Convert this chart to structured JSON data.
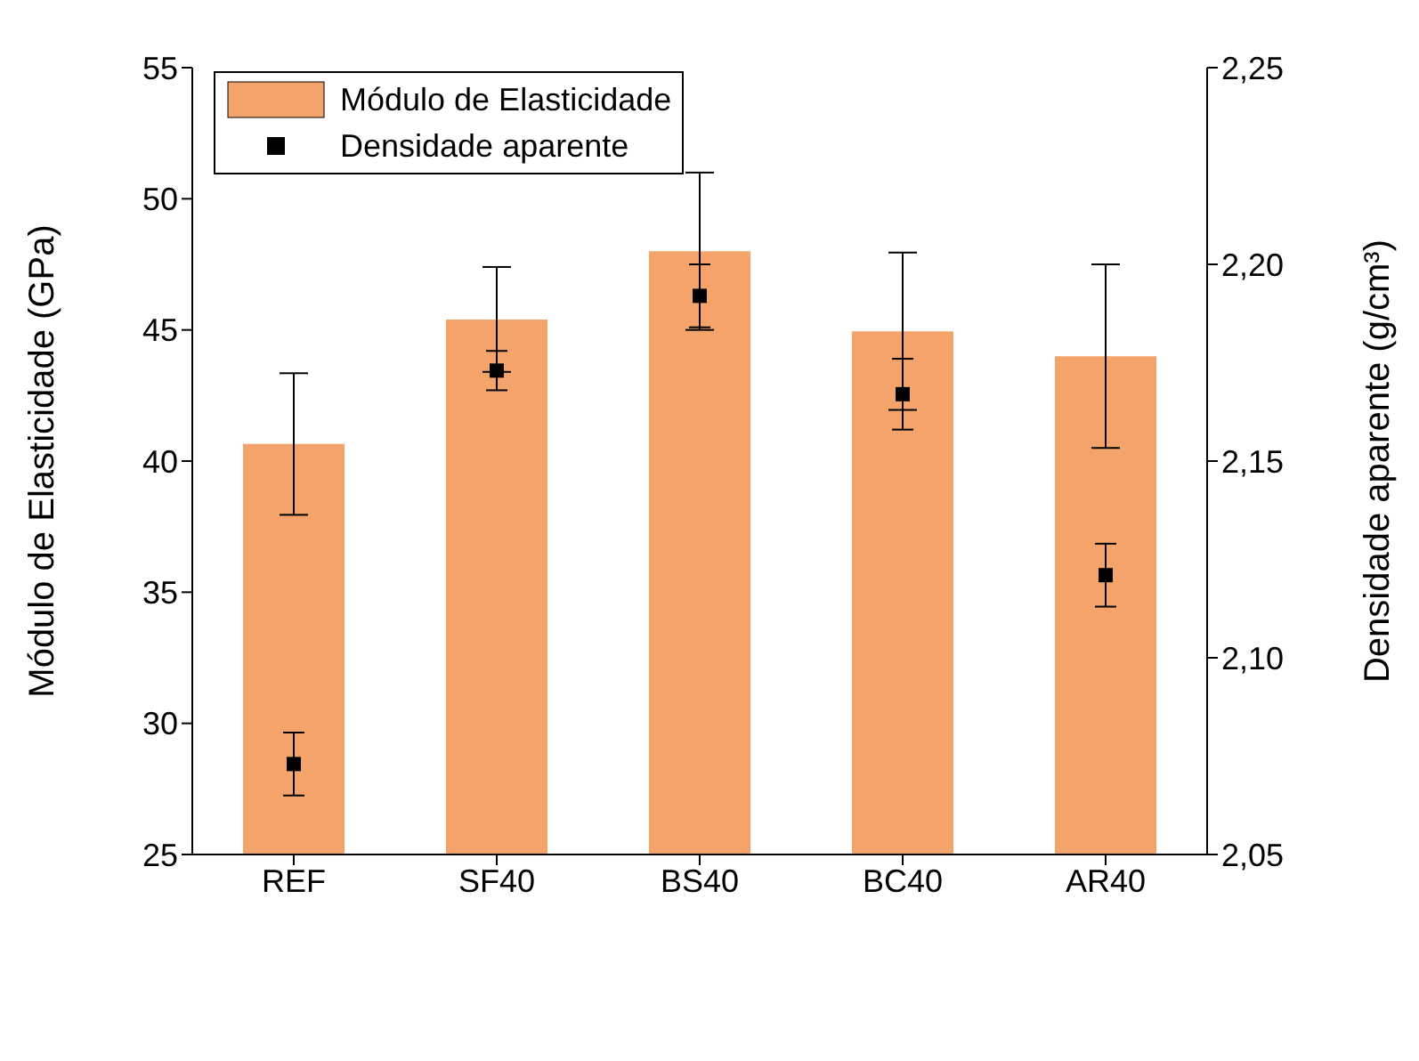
{
  "chart_data": {
    "type": "bar",
    "categories": [
      "REF",
      "SF40",
      "BS40",
      "BC40",
      "AR40"
    ],
    "xlabel": null,
    "ylabel": "Módulo de Elasticidade (GPa)",
    "y2label": "Densidade aparente (g/cm³)",
    "series": [
      {
        "name": "Módulo de Elasticidade",
        "color": "#f4a46a",
        "values": [
          40.65,
          45.4,
          48.0,
          44.95,
          44.0
        ],
        "errors": [
          2.7,
          2.0,
          3.0,
          3.0,
          3.5
        ]
      },
      {
        "name": "Densidade aparente",
        "type": "scatter",
        "axis": "y2",
        "color": "#000000",
        "values": [
          2.073,
          2.173,
          2.192,
          2.167,
          2.121
        ],
        "errors": [
          0.008,
          0.005,
          0.008,
          0.009,
          0.008
        ]
      }
    ],
    "ylim": [
      25,
      55
    ],
    "yticks": [
      25,
      30,
      35,
      40,
      45,
      50,
      55
    ],
    "y2lim": [
      2.05,
      2.25
    ],
    "y2ticks": [
      {
        "value": 2.05,
        "label": "2,05"
      },
      {
        "value": 2.1,
        "label": "2,10"
      },
      {
        "value": 2.15,
        "label": "2,15"
      },
      {
        "value": 2.2,
        "label": "2,20"
      },
      {
        "value": 2.25,
        "label": "2,25"
      }
    ],
    "legend": "top left",
    "marker": "square",
    "grid": false
  }
}
